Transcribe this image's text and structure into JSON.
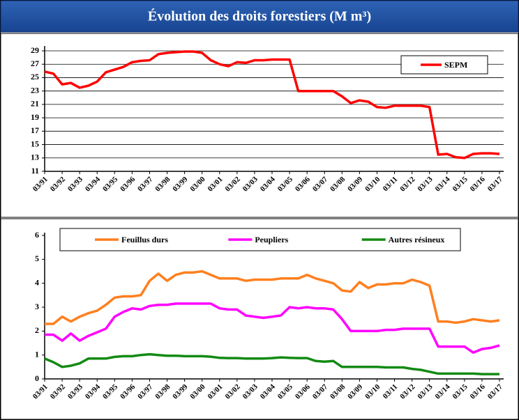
{
  "title": "Évolution des droits forestiers (M m³)",
  "chart_data": [
    {
      "type": "line",
      "grid": true,
      "legend": "upper right",
      "categories": [
        "03/91",
        null,
        "03/92",
        null,
        "03/93",
        null,
        "03/94",
        null,
        "03/95",
        null,
        "03/96",
        null,
        "03/97",
        null,
        "03/98",
        null,
        "03/99",
        null,
        "03/00",
        null,
        "03/01",
        null,
        "03/02",
        null,
        "03/03",
        null,
        "03/04",
        null,
        "03/05",
        null,
        "03/06",
        null,
        "03/07",
        null,
        "03/08",
        null,
        "03/09",
        null,
        "03/10",
        null,
        "03/11",
        null,
        "03/12",
        null,
        "03/13",
        null,
        "03/14",
        null,
        "03/15",
        null,
        "03/16",
        null,
        "03/17"
      ],
      "ylim": [
        11,
        29
      ],
      "yticks": [
        11,
        13,
        15,
        17,
        19,
        21,
        23,
        25,
        27,
        29
      ],
      "series": [
        {
          "name": "SEPM",
          "color": "#ff0000",
          "values": [
            25.9,
            25.6,
            24.0,
            24.2,
            23.5,
            23.8,
            24.4,
            25.8,
            26.2,
            26.6,
            27.3,
            27.5,
            27.6,
            28.5,
            28.7,
            28.8,
            28.9,
            28.9,
            28.7,
            27.6,
            27.0,
            26.7,
            27.3,
            27.2,
            27.6,
            27.6,
            27.7,
            27.7,
            27.7,
            23.0,
            23.0,
            23.0,
            23.0,
            23.0,
            22.2,
            21.2,
            21.6,
            21.4,
            20.6,
            20.5,
            20.8,
            20.8,
            20.8,
            20.8,
            20.6,
            13.5,
            13.6,
            13.1,
            13.0,
            13.6,
            13.7,
            13.7,
            13.6
          ]
        }
      ]
    },
    {
      "type": "line",
      "grid": false,
      "legend": "upper center",
      "categories": [
        "03/91",
        null,
        "03/92",
        null,
        "03/93",
        null,
        "03/94",
        null,
        "03/95",
        null,
        "03/96",
        null,
        "03/97",
        null,
        "03/98",
        null,
        "03/99",
        null,
        "03/00",
        null,
        "03/01",
        null,
        "03/02",
        null,
        "03/03",
        null,
        "03/04",
        null,
        "03/05",
        null,
        "03/06",
        null,
        "03/07",
        null,
        "03/08",
        null,
        "03/09",
        null,
        "03/10",
        null,
        "03/11",
        null,
        "03/12",
        null,
        "03/13",
        null,
        "03/14",
        null,
        "03/15",
        null,
        "03/16",
        null,
        "03/17"
      ],
      "ylim": [
        0,
        6
      ],
      "yticks": [
        0,
        1,
        2,
        3,
        4,
        5,
        6
      ],
      "series": [
        {
          "name": "Feuillus durs",
          "color": "#ff7f1e",
          "values": [
            2.3,
            2.3,
            2.6,
            2.4,
            2.6,
            2.75,
            2.85,
            3.1,
            3.4,
            3.45,
            3.45,
            3.5,
            4.1,
            4.4,
            4.1,
            4.35,
            4.45,
            4.45,
            4.5,
            4.35,
            4.2,
            4.2,
            4.2,
            4.1,
            4.15,
            4.15,
            4.15,
            4.2,
            4.2,
            4.2,
            4.35,
            4.2,
            4.1,
            4.0,
            3.7,
            3.65,
            4.05,
            3.8,
            3.95,
            3.95,
            4.0,
            4.0,
            4.15,
            4.05,
            3.9,
            2.4,
            2.4,
            2.35,
            2.4,
            2.5,
            2.45,
            2.4,
            2.45
          ]
        },
        {
          "name": "Peupliers",
          "color": "#ff00ff",
          "values": [
            1.85,
            1.85,
            1.6,
            1.9,
            1.6,
            1.8,
            1.95,
            2.1,
            2.6,
            2.8,
            2.95,
            2.9,
            3.05,
            3.1,
            3.1,
            3.15,
            3.15,
            3.15,
            3.15,
            3.15,
            2.95,
            2.9,
            2.9,
            2.65,
            2.6,
            2.55,
            2.6,
            2.65,
            3.0,
            2.95,
            3.0,
            2.95,
            2.95,
            2.9,
            2.5,
            2.0,
            2.0,
            2.0,
            2.0,
            2.05,
            2.05,
            2.1,
            2.1,
            2.1,
            2.1,
            1.35,
            1.35,
            1.35,
            1.35,
            1.1,
            1.25,
            1.3,
            1.4
          ]
        },
        {
          "name": "Autres résineux",
          "color": "#138a13",
          "values": [
            0.85,
            0.7,
            0.5,
            0.55,
            0.65,
            0.85,
            0.85,
            0.85,
            0.92,
            0.95,
            0.95,
            1.0,
            1.03,
            1.0,
            0.97,
            0.97,
            0.95,
            0.95,
            0.95,
            0.93,
            0.88,
            0.87,
            0.87,
            0.85,
            0.85,
            0.85,
            0.87,
            0.9,
            0.88,
            0.87,
            0.87,
            0.75,
            0.72,
            0.75,
            0.5,
            0.5,
            0.5,
            0.5,
            0.5,
            0.48,
            0.48,
            0.48,
            0.42,
            0.38,
            0.3,
            0.22,
            0.22,
            0.22,
            0.22,
            0.22,
            0.2,
            0.2,
            0.2
          ]
        }
      ]
    }
  ]
}
